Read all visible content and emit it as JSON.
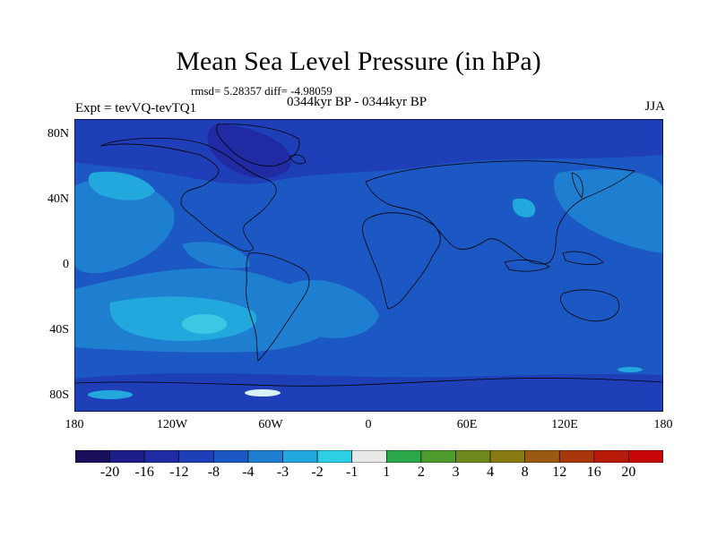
{
  "title": "Mean Sea Level Pressure (in hPa)",
  "stats": "rmsd= 5.28357 diff= -4.98059",
  "experiment": "Expt = tevVQ-tevTQ1",
  "period": "0344kyr BP - 0344kyr BP",
  "season": "JJA",
  "map": {
    "projection": "equirectangular",
    "lon_range": [
      -180,
      180
    ],
    "lat_range": [
      -90,
      90
    ],
    "background_level": "-8 to -4",
    "features": [
      "coastlines",
      "filled contours"
    ]
  },
  "y_ticks": [
    "80N",
    "40N",
    "0",
    "40S",
    "80S"
  ],
  "x_ticks": [
    "180",
    "120W",
    "60W",
    "0",
    "60E",
    "120E",
    "180"
  ],
  "colorbar": {
    "labels": [
      "-20",
      "-16",
      "-12",
      "-8",
      "-4",
      "-3",
      "-2",
      "-1",
      "1",
      "2",
      "3",
      "4",
      "8",
      "12",
      "16",
      "20"
    ],
    "colors": [
      "#1a0f5c",
      "#1c1c8a",
      "#1f2aa3",
      "#1f3fb8",
      "#1c58c4",
      "#1e7fd1",
      "#22a8dc",
      "#2ccfe6",
      "#e8e8e8",
      "#2aa84a",
      "#4e9a2c",
      "#6e8a1f",
      "#8a7a14",
      "#9a5a10",
      "#a8380c",
      "#b81a0a",
      "#c80808"
    ]
  }
}
